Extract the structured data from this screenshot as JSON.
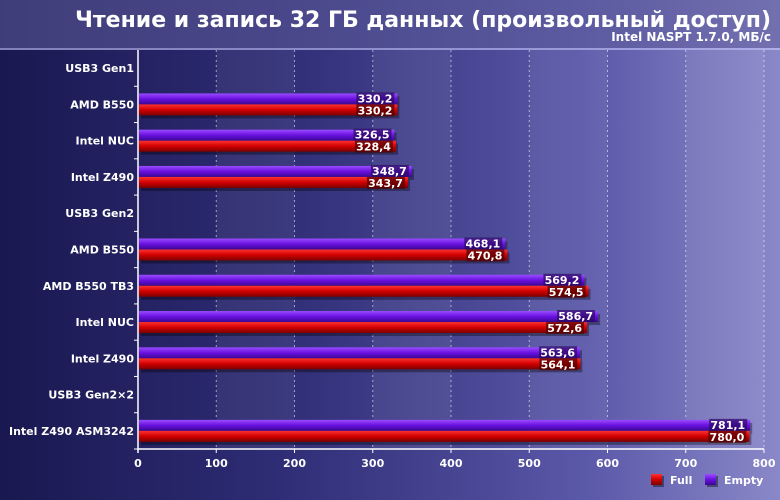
{
  "chart_data": {
    "type": "bar",
    "orientation": "horizontal",
    "title": "Чтение и запись 32 ГБ данных (произвольный доступ)",
    "subtitle": "Intel NASPT 1.7.0, МБ/с",
    "xlim": [
      0,
      800
    ],
    "xticks": [
      "0",
      "100",
      "200",
      "300",
      "400",
      "500",
      "600",
      "700",
      "800"
    ],
    "categories": [
      "USB3 Gen1",
      "AMD B550",
      "Intel NUC",
      "Intel Z490",
      "USB3 Gen2",
      "AMD B550",
      "AMD B550 TB3",
      "Intel NUC",
      "Intel Z490",
      "USB3 Gen2×2",
      "Intel Z490 ASM3242"
    ],
    "group_headers": [
      true,
      false,
      false,
      false,
      true,
      false,
      false,
      false,
      false,
      true,
      false
    ],
    "series": [
      {
        "name": "Empty",
        "color": "#6a10e0",
        "values": [
          null,
          330.2,
          326.5,
          348.7,
          null,
          468.1,
          569.2,
          586.7,
          563.6,
          null,
          781.1
        ],
        "labels": [
          "",
          "330,2",
          "326,5",
          "348,7",
          "",
          "468,1",
          "569,2",
          "586,7",
          "563,6",
          "",
          "781,1"
        ]
      },
      {
        "name": "Full",
        "color": "#d00000",
        "values": [
          null,
          330.2,
          328.4,
          343.7,
          null,
          470.8,
          574.5,
          572.6,
          564.1,
          null,
          780.0
        ],
        "labels": [
          "",
          "330,2",
          "328,4",
          "343,7",
          "",
          "470,8",
          "574,5",
          "572,6",
          "564,1",
          "",
          "780,0"
        ]
      }
    ],
    "legend": {
      "position": "bottom-right",
      "items": [
        "Full",
        "Empty"
      ]
    },
    "grid": true
  }
}
